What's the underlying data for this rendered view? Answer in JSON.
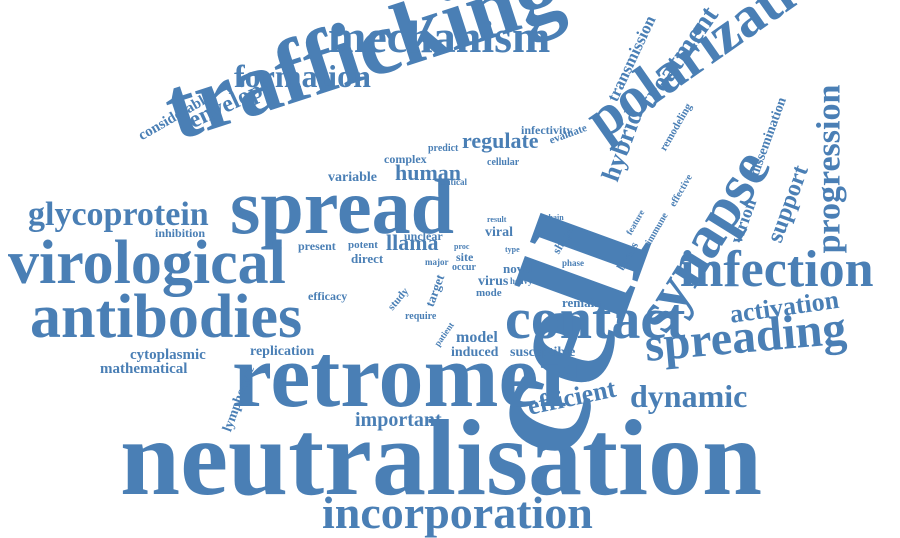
{
  "color": "#4a7fb5",
  "words": {
    "neutralisation": "neutralisation",
    "cell": "cell",
    "retromer": "retromer",
    "trafficking": "trafficking",
    "spread": "spread",
    "antibodies": "antibodies",
    "virological": "virological",
    "contact": "contact",
    "polarization": "polarization",
    "synapse": "synapse",
    "infection": "infection",
    "spreading": "spreading",
    "incorporation": "incorporation",
    "mechanism": "mechanism",
    "formation": "formation",
    "glycoprotein": "glycoprotein",
    "progression": "progression",
    "dynamic": "dynamic",
    "activation": "activation",
    "efficient": "efficient",
    "envelope": "envelope",
    "treatment": "treatment",
    "hybrid": "hybrid",
    "regulate": "regulate",
    "human": "human",
    "llama": "llama",
    "important": "important",
    "support": "support",
    "virion": "virion",
    "transmission": "transmission",
    "considerable": "considerable",
    "variable": "variable",
    "mathematical": "mathematical",
    "cytoplasmic": "cytoplasmic",
    "replication": "replication",
    "lymphocyte": "lymphocyte",
    "model": "model",
    "induced": "induced",
    "susceptible": "susceptible",
    "remain": "remain",
    "dissemination": "dissemination",
    "infectivity": "infectivity",
    "complex": "complex",
    "evaluate": "evaluate",
    "predict": "predict",
    "cellular": "cellular",
    "critical": "critical",
    "remodeling": "remodeling",
    "effective": "effective",
    "feature": "feature",
    "immune": "immune",
    "bnabs": "bnabs",
    "inhibition": "inhibition",
    "present": "present",
    "potent": "potent",
    "direct": "direct",
    "unclear": "unclear",
    "major": "major",
    "result": "result",
    "viral": "viral",
    "chain": "chain",
    "shape": "shape",
    "proc": "proc",
    "site": "site",
    "occur": "occur",
    "type": "type",
    "phase": "phase",
    "novel": "novel",
    "virus": "virus",
    "heavy": "heavy",
    "mode": "mode",
    "target": "target",
    "study": "study",
    "require": "require",
    "patient": "patient",
    "efficacy": "efficacy"
  }
}
